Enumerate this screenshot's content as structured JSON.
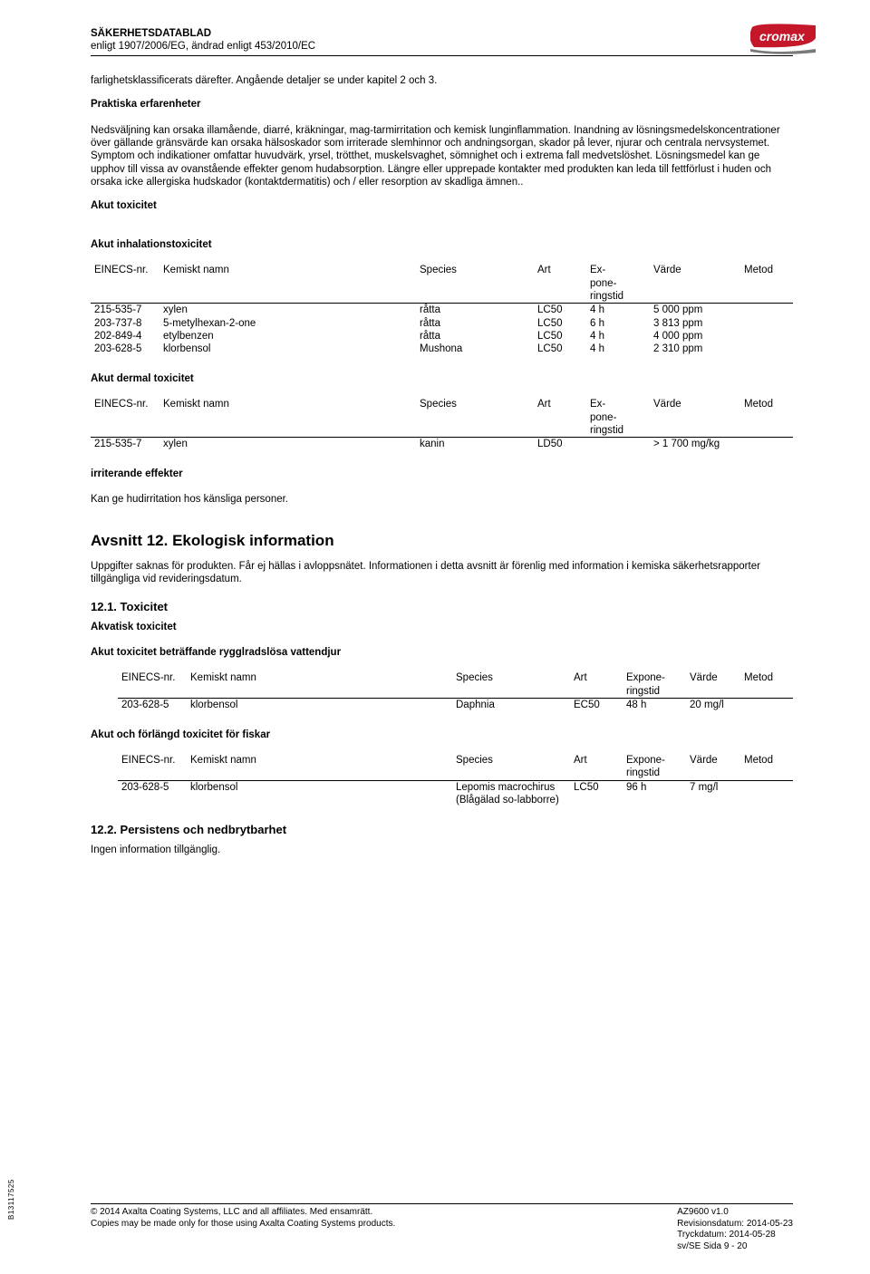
{
  "header": {
    "title": "SÄKERHETSDATABLAD",
    "subtitle": "enligt 1907/2006/EG, ändrad enligt 453/2010/EC",
    "logo_text": "cromax",
    "logo_bg": "#c4172a",
    "logo_fg": "#ffffff"
  },
  "intro": {
    "p1": "farlighetsklassificerats därefter. Angående detaljer se under kapitel 2 och 3.",
    "h1": "Praktiska erfarenheter",
    "p2": "Nedsväljning kan orsaka illamående, diarré, kräkningar, mag-tarmirritation och kemisk lunginflammation. Inandning av lösningsmedelskoncentrationer över gällande gränsvärde kan orsaka hälsoskador som irriterade slemhinnor och andningsorgan, skador på lever, njurar och centrala nervsystemet. Symptom och indikationer omfattar huvudvärk, yrsel, trötthet, muskelsvaghet, sömnighet och i extrema fall medvetslöshet. Lösningsmedel kan ge upphov till vissa av ovanstående effekter genom hudabsorption. Längre eller upprepade kontakter med produkten kan leda till fettförlust i huden och orsaka icke allergiska hudskador (kontaktdermatitis) och / eller resorption av skadliga ämnen..",
    "h_akut": "Akut toxicitet"
  },
  "tbl_headers": {
    "einecs": "EINECS-nr.",
    "namn": "Kemiskt namn",
    "species": "Species",
    "art": "Art",
    "exp1": "Ex-",
    "exp2": "pone-",
    "exp3": "ringstid",
    "varde": "Värde",
    "metod": "Metod",
    "expA1": "Expone-",
    "expA2": "ringstid"
  },
  "inhal": {
    "title": "Akut inhalationstoxicitet",
    "rows": [
      {
        "e": "215-535-7",
        "n": "xylen",
        "s": "råtta",
        "a": "LC50",
        "x": "4 h",
        "v": "5 000 ppm",
        "m": ""
      },
      {
        "e": "203-737-8",
        "n": "5-metylhexan-2-one",
        "s": "råtta",
        "a": "LC50",
        "x": "6 h",
        "v": "3 813 ppm",
        "m": ""
      },
      {
        "e": "202-849-4",
        "n": "etylbenzen",
        "s": "råtta",
        "a": "LC50",
        "x": "4 h",
        "v": "4 000 ppm",
        "m": ""
      },
      {
        "e": "203-628-5",
        "n": "klorbensol",
        "s": "Mushona",
        "a": "LC50",
        "x": "4 h",
        "v": "2 310 ppm",
        "m": ""
      }
    ]
  },
  "dermal": {
    "title": "Akut dermal toxicitet",
    "rows": [
      {
        "e": "215-535-7",
        "n": "xylen",
        "s": "kanin",
        "a": "LD50",
        "x": "",
        "v": "> 1 700 mg/kg",
        "m": ""
      }
    ]
  },
  "irr": {
    "title": "irriterande effekter",
    "text": "Kan ge hudirritation hos känsliga personer."
  },
  "sec12": {
    "title": "Avsnitt 12. Ekologisk information",
    "intro": "Uppgifter saknas för produkten. Får ej hällas i avloppsnätet. Informationen i detta avsnitt är förenlig med information i kemiska säkerhetsrapporter tillgängliga vid revideringsdatum.",
    "h121": "12.1. Toxicitet",
    "h_akv": "Akvatisk toxicitet",
    "h_rygg": "Akut toxicitet beträffande rygglradslösa vattendjur",
    "rygg_rows": [
      {
        "e": "203-628-5",
        "n": "klorbensol",
        "s": "Daphnia",
        "a": "EC50",
        "x": "48 h",
        "v": "20 mg/l",
        "m": ""
      }
    ],
    "h_fisk": "Akut och förlängd toxicitet för fiskar",
    "fisk_rows": [
      {
        "e": "203-628-5",
        "n": "klorbensol",
        "s": "Lepomis macrochirus (Blågälad so-labborre)",
        "a": "LC50",
        "x": "96 h",
        "v": "7 mg/l",
        "m": ""
      }
    ],
    "h122": "12.2. Persistens och nedbrytbarhet",
    "p122": "Ingen information tillgänglig."
  },
  "footer": {
    "l1": "© 2014 Axalta Coating Systems, LLC and all affiliates. Med ensamrätt.",
    "l2": "Copies may be made only for those using Axalta Coating Systems products.",
    "r1": "AZ9600  v1.0",
    "r2": "Revisionsdatum: 2014-05-23",
    "r3": "Tryckdatum: 2014-05-28",
    "r4": "sv/SE Sida 9 - 20",
    "side": "B13117525"
  }
}
